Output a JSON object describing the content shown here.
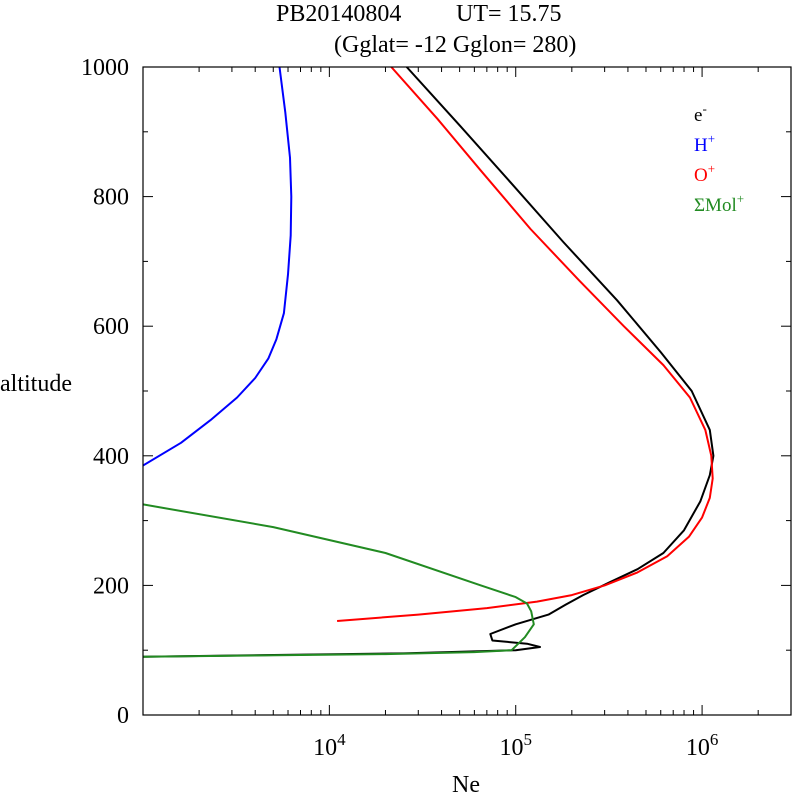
{
  "title": {
    "line1_left": "PB20140804",
    "line1_right": "UT=  15.75",
    "line2": "(Gglat= -12   Gglon=  280)"
  },
  "chart_data": {
    "type": "line",
    "title": "PB20140804   UT=  15.75   (Gglat= -12   Gglon=  280)",
    "xlabel": "Ne",
    "ylabel": "altitude",
    "xscale": "log",
    "xlim": [
      1000,
      3000000
    ],
    "ylim": [
      0,
      1000
    ],
    "y_ticks": [
      "0",
      "200",
      "400",
      "600",
      "800",
      "1000"
    ],
    "x_ticks": [
      {
        "value": 10000,
        "base": "10",
        "exp": "4"
      },
      {
        "value": 100000,
        "base": "10",
        "exp": "5"
      },
      {
        "value": 1000000,
        "base": "10",
        "exp": "6"
      }
    ],
    "grid": false,
    "legend_position": "top-right",
    "series": [
      {
        "name": "e-",
        "legend_base": "e",
        "legend_sup": "-",
        "color": "#000000",
        "x": [
          1000,
          25000,
          100000,
          135000,
          115000,
          75000,
          73000,
          100000,
          150000,
          185000,
          230000,
          320000,
          450000,
          620000,
          800000,
          980000,
          1100000,
          1150000,
          1100000,
          880000,
          600000,
          350000,
          180000,
          95000,
          50000,
          26000
        ],
        "y": [
          90,
          95,
          100,
          105,
          110,
          115,
          125,
          140,
          155,
          170,
          185,
          205,
          225,
          250,
          285,
          330,
          370,
          400,
          440,
          500,
          560,
          640,
          730,
          820,
          910,
          1000
        ]
      },
      {
        "name": "H+",
        "legend_base": "H",
        "legend_sup": "+",
        "color": "#0000ff",
        "x": [
          1000,
          1600,
          2300,
          3200,
          4000,
          4700,
          5200,
          5700,
          6000,
          6200,
          6250,
          6150,
          5800,
          5400
        ],
        "y": [
          385,
          420,
          455,
          490,
          520,
          550,
          580,
          620,
          680,
          740,
          800,
          860,
          930,
          1000
        ]
      },
      {
        "name": "O+",
        "legend_base": "O",
        "legend_sup": "+",
        "color": "#ff0000",
        "x": [
          11000,
          30000,
          70000,
          130000,
          200000,
          300000,
          450000,
          650000,
          850000,
          1000000,
          1100000,
          1140000,
          1120000,
          1040000,
          860000,
          620000,
          380000,
          220000,
          120000,
          65000,
          38000,
          21500
        ],
        "y": [
          145,
          155,
          165,
          175,
          185,
          200,
          220,
          245,
          275,
          305,
          335,
          365,
          400,
          440,
          490,
          540,
          600,
          670,
          750,
          840,
          920,
          1000
        ]
      },
      {
        "name": "ΣMol+",
        "legend_base": "ΣMol",
        "legend_sup": "+",
        "color": "#228b22",
        "x": [
          1000,
          20000,
          60000,
          95000,
          112000,
          125000,
          121000,
          115000,
          100000,
          65000,
          20000,
          5000,
          1000
        ],
        "y": [
          90,
          94,
          97,
          100,
          120,
          140,
          160,
          172,
          182,
          200,
          250,
          290,
          325
        ]
      }
    ]
  }
}
